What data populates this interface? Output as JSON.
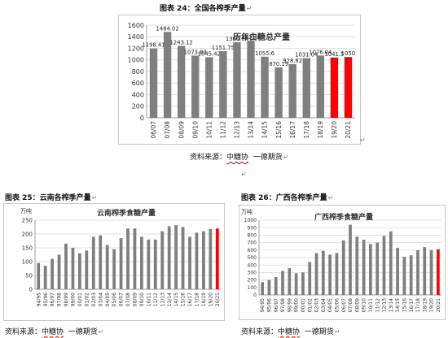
{
  "figure_titles": [
    "图表 24：全国各榨季产量",
    "图表 25：云南各榨季产量",
    "图表 26：广西各榨季产量"
  ],
  "sources": {
    "prefix": "资料来源：",
    "org": "中糖协",
    "suffix": "一德期货"
  },
  "colors": {
    "bar_gray": "#7f7f7f",
    "bar_red": "#ff0000",
    "grid": "#d9d9d9"
  },
  "chart_data": [
    {
      "type": "bar",
      "title": "历年白糖总产量",
      "ylabel": "",
      "ylim": [
        0,
        1600
      ],
      "yticks": [
        0,
        200,
        400,
        600,
        800,
        1000,
        1200,
        1400,
        1600
      ],
      "grid": true,
      "categories": [
        "06/07",
        "07/08",
        "08/09",
        "09/10",
        "10/11",
        "11/12",
        "12/13",
        "13/14",
        "14/15",
        "15/16",
        "16/17",
        "17/18",
        "18/19",
        "19/20",
        "20/21"
      ],
      "values": [
        1198.41,
        1484.02,
        1243.12,
        1073.83,
        1045.42,
        1151.75,
        1306.84,
        1331.8,
        1055.6,
        870.19,
        928.82,
        1031.04,
        1076.04,
        1041.5,
        1050
      ],
      "data_labels": [
        "1198.41",
        "1484.02",
        "1243.12",
        "1073.83",
        "1045.42",
        "1151.75",
        "1306.84",
        "1331.8",
        "1055.6",
        "870.19",
        "928.82",
        "1031.04",
        "1076.04",
        "1041.5",
        "1050"
      ],
      "highlight": [
        "19/20",
        "20/21"
      ]
    },
    {
      "type": "bar",
      "title": "云南榨季食糖产量",
      "ylabel": "万吨",
      "ylim": [
        0,
        250
      ],
      "yticks": [
        0,
        50,
        100,
        150,
        200,
        250
      ],
      "grid": true,
      "categories": [
        "94/95",
        "95/96",
        "96/97",
        "97/98",
        "98/99",
        "99/00",
        "00/01",
        "01/02",
        "02/03",
        "03/04",
        "04/05",
        "05/06",
        "06/07",
        "07/08",
        "08/09",
        "09/10",
        "10/11",
        "11/12",
        "12/13",
        "13/14",
        "14/15",
        "15/16",
        "16/17",
        "17/18",
        "18/19",
        "19/20",
        "20/21"
      ],
      "values": [
        95,
        85,
        110,
        125,
        165,
        150,
        130,
        140,
        190,
        195,
        160,
        145,
        185,
        220,
        220,
        190,
        180,
        180,
        210,
        228,
        232,
        225,
        190,
        205,
        210,
        218,
        220
      ],
      "highlight": [
        "20/21"
      ]
    },
    {
      "type": "bar",
      "title": "广西榨季食糖产量",
      "ylabel": "万吨",
      "ylim": [
        0,
        1000
      ],
      "yticks": [
        0,
        100,
        200,
        300,
        400,
        500,
        600,
        700,
        800,
        900,
        1000
      ],
      "grid": true,
      "categories": [
        "94/95",
        "95/96",
        "96/97",
        "97/98",
        "98/99",
        "99/00",
        "00/01",
        "01/02",
        "02/03",
        "03/04",
        "04/05",
        "05/06",
        "06/07",
        "07/08",
        "08/09",
        "09/10",
        "10/11",
        "11/12",
        "12/13",
        "13/14",
        "14/15",
        "15/16",
        "16/17",
        "17/18",
        "18/19",
        "19/20",
        "20/21"
      ],
      "values": [
        170,
        200,
        240,
        320,
        360,
        290,
        300,
        440,
        560,
        590,
        540,
        560,
        730,
        940,
        780,
        740,
        680,
        700,
        790,
        850,
        630,
        510,
        530,
        600,
        640,
        600,
        610
      ],
      "highlight": [
        "20/21"
      ]
    }
  ]
}
